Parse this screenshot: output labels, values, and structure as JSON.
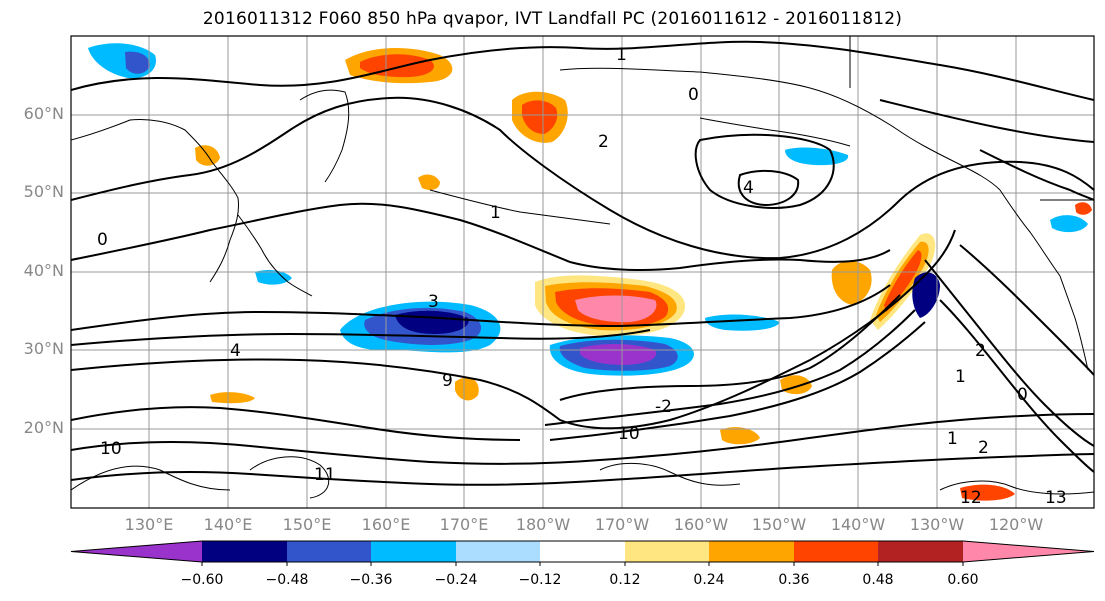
{
  "title": "2016011312 F060 850 hPa qvapor, IVT Landfall PC (2016011612 - 2016011812)",
  "map": {
    "lat_labels": [
      "60°N",
      "50°N",
      "40°N",
      "30°N",
      "20°N"
    ],
    "lon_labels": [
      "130°E",
      "140°E",
      "150°E",
      "160°E",
      "170°E",
      "180°W",
      "170°W",
      "160°W",
      "150°W",
      "140°W",
      "130°W",
      "120°W"
    ],
    "contour_labels": [
      "1",
      "0",
      "2",
      "4",
      "1",
      "3",
      "4",
      "0",
      "-2",
      "2",
      "1",
      "0",
      "10",
      "11",
      "1",
      "2",
      "13",
      "12",
      "9",
      "10"
    ]
  },
  "colorbar": {
    "colors": [
      "#9933cc",
      "#000080",
      "#3355cc",
      "#00bbff",
      "#aaddff",
      "#ffffff",
      "#ffe680",
      "#ffa500",
      "#ff4400",
      "#b22222",
      "#ff88aa"
    ],
    "ticks": [
      "−0.60",
      "−0.48",
      "−0.36",
      "−0.24",
      "−0.12",
      "0.12",
      "0.24",
      "0.36",
      "0.48",
      "0.60"
    ]
  },
  "colors": {
    "lat_lon_label": "#888888",
    "coastline": "#000000",
    "grid": "#999999"
  }
}
